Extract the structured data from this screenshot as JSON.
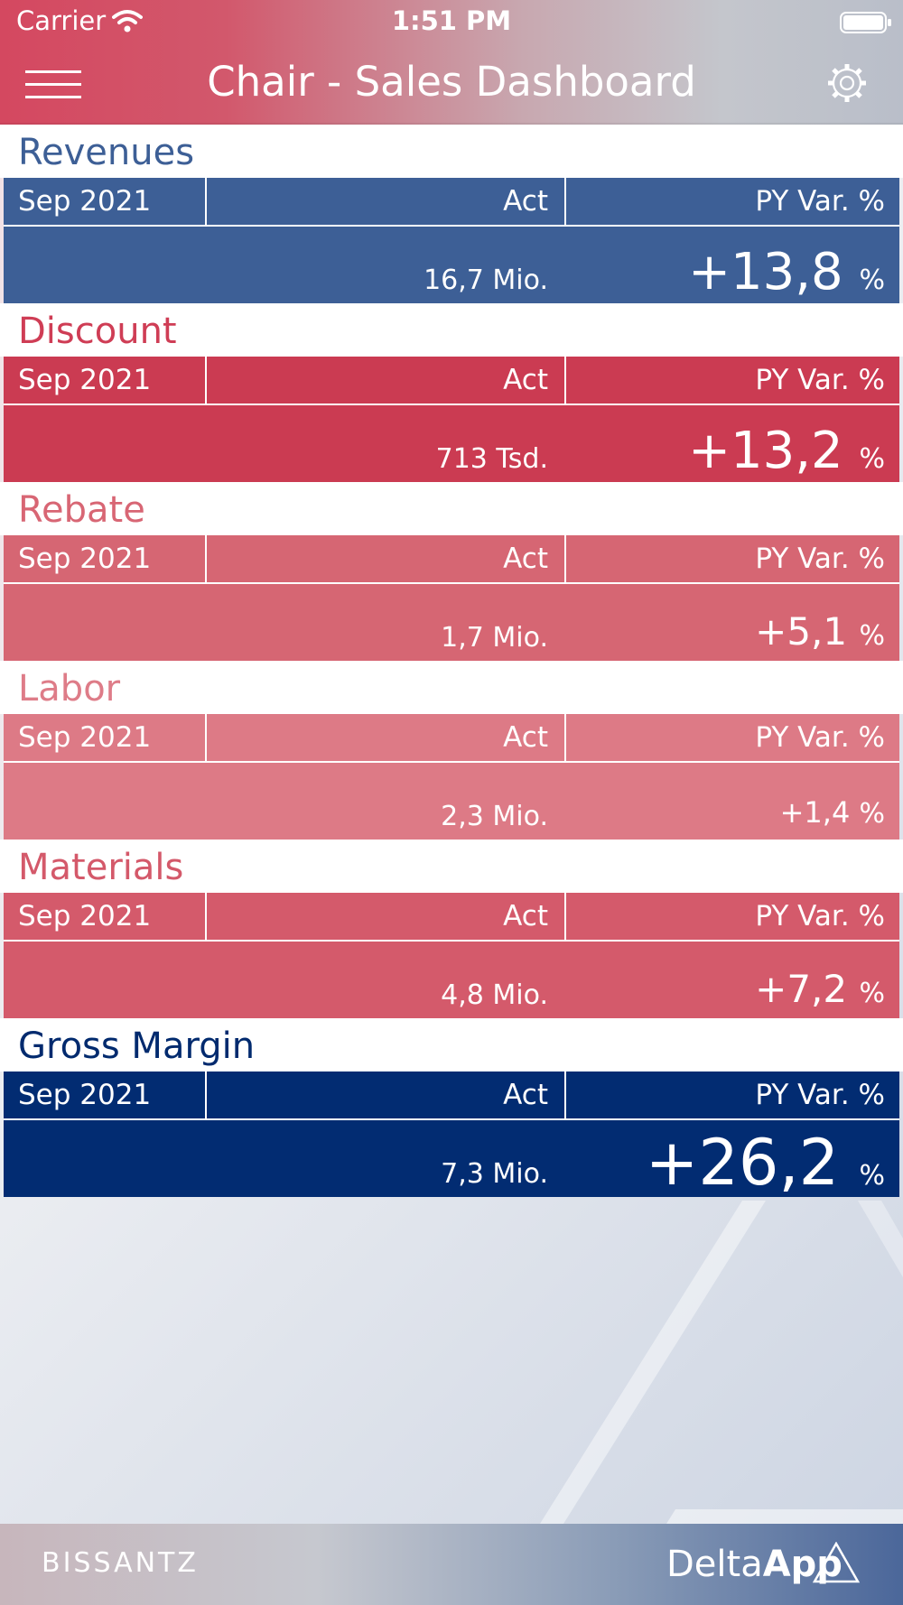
{
  "status_bar": {
    "carrier": "Carrier",
    "time": "1:51 PM"
  },
  "header": {
    "title": "Chair - Sales Dashboard",
    "menu_icon": "hamburger-menu-icon",
    "settings_icon": "gear-icon"
  },
  "column_labels": {
    "period": "Sep 2021",
    "act": "Act",
    "py": "PY Var. %"
  },
  "sections": [
    {
      "title": "Revenues",
      "period": "Sep 2021",
      "act_label": "Act",
      "py_label": "PY Var. %",
      "act_value": "16,7 Mio.",
      "py_value": "+13,8",
      "py_unit": "%",
      "title_color": "#3d5f96",
      "color": "#3d5f96",
      "emphasis": "large"
    },
    {
      "title": "Discount",
      "period": "Sep 2021",
      "act_label": "Act",
      "py_label": "PY Var. %",
      "act_value": "713 Tsd.",
      "py_value": "+13,2",
      "py_unit": "%",
      "title_color": "#cf3d55",
      "color": "#cb3b52",
      "emphasis": "large"
    },
    {
      "title": "Rebate",
      "period": "Sep 2021",
      "act_label": "Act",
      "py_label": "PY Var. %",
      "act_value": "1,7 Mio.",
      "py_value": "+5,1",
      "py_unit": "%",
      "title_color": "#d86674",
      "color": "#d66673",
      "emphasis": "medium"
    },
    {
      "title": "Labor",
      "period": "Sep 2021",
      "act_label": "Act",
      "py_label": "PY Var. %",
      "act_value": "2,3 Mio.",
      "py_value": "+1,4",
      "py_unit": "%",
      "title_color": "#de7c88",
      "color": "#dd7a86",
      "emphasis": "small"
    },
    {
      "title": "Materials",
      "period": "Sep 2021",
      "act_label": "Act",
      "py_label": "PY Var. %",
      "act_value": "4,8 Mio.",
      "py_value": "+7,2",
      "py_unit": "%",
      "title_color": "#d4596a",
      "color": "#d45a6b",
      "emphasis": "medium"
    },
    {
      "title": "Gross Margin",
      "period": "Sep 2021",
      "act_label": "Act",
      "py_label": "PY Var. %",
      "act_value": "7,3 Mio.",
      "py_value": "+26,2",
      "py_unit": "%",
      "title_color": "#002a6e",
      "color": "#022c72",
      "emphasis": "xlarge"
    }
  ],
  "footer": {
    "brand": "BISSANTZ",
    "app_name_light": "Delta",
    "app_name_bold": "App"
  }
}
